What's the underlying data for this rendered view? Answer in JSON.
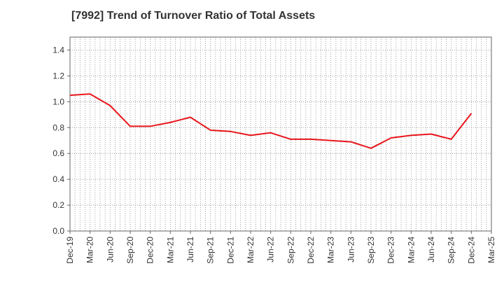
{
  "chart_data": {
    "type": "line",
    "title": "[7992]  Trend of Turnover Ratio of Total Assets",
    "xlabel": "",
    "ylabel": "",
    "ylim": [
      0,
      1.5
    ],
    "yticks": [
      "0.0",
      "0.2",
      "0.4",
      "0.6",
      "0.8",
      "1.0",
      "1.2",
      "1.4"
    ],
    "categories": [
      "Dec-19",
      "Mar-20",
      "Jun-20",
      "Sep-20",
      "Dec-20",
      "Mar-21",
      "Jun-21",
      "Sep-21",
      "Dec-21",
      "Mar-22",
      "Jun-22",
      "Sep-22",
      "Dec-22",
      "Mar-23",
      "Jun-23",
      "Sep-23",
      "Dec-23",
      "Mar-24",
      "Jun-24",
      "Sep-24",
      "Dec-24",
      "Mar-25"
    ],
    "series": [
      {
        "name": "",
        "color": "#e8161b",
        "values": [
          1.05,
          1.06,
          0.97,
          0.81,
          0.81,
          0.84,
          0.88,
          0.78,
          0.77,
          0.74,
          0.76,
          0.71,
          0.71,
          0.7,
          0.69,
          0.64,
          0.72,
          0.74,
          0.75,
          0.71,
          0.91,
          null
        ]
      }
    ],
    "grid": true,
    "legend": "none"
  }
}
